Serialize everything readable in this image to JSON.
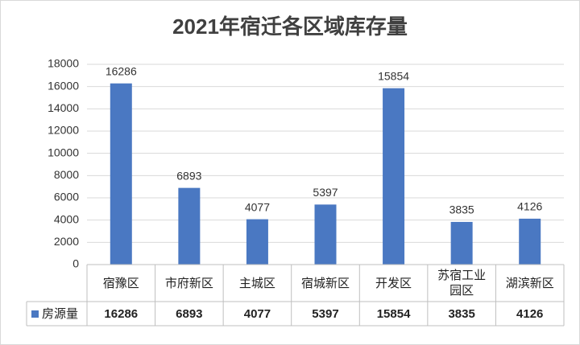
{
  "chart_data": {
    "type": "bar",
    "title": "2021年宿迁各区域库存量",
    "categories": [
      "宿豫区",
      "市府新区",
      "主城区",
      "宿城新区",
      "开发区",
      "苏宿工业园区",
      "湖滨新区"
    ],
    "series": [
      {
        "name": "房源量",
        "color": "#4a78c2",
        "values": [
          16286,
          6893,
          4077,
          5397,
          15854,
          3835,
          4126
        ]
      }
    ],
    "ylim": [
      0,
      18000
    ],
    "yticks": [
      0,
      2000,
      4000,
      6000,
      8000,
      10000,
      12000,
      14000,
      16000,
      18000
    ],
    "grid": true
  }
}
